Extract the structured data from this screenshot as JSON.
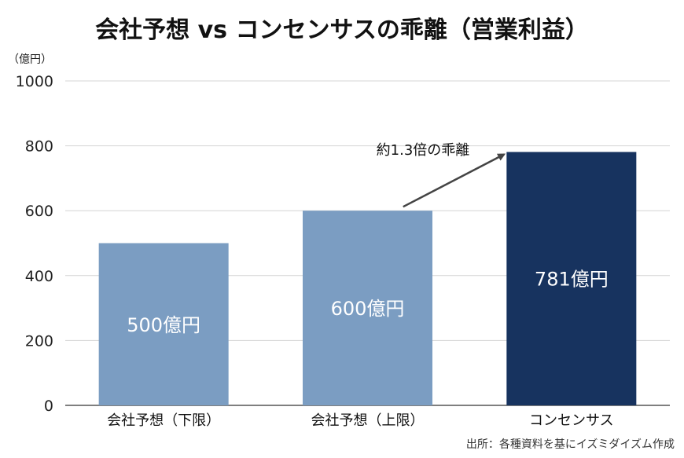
{
  "chart_data": {
    "type": "bar",
    "title": "会社予想 vs コンセンサスの乖離（営業利益）",
    "unit_label": "（億円）",
    "categories": [
      "会社予想（下限）",
      "会社予想（上限）",
      "コンセンサス"
    ],
    "values": [
      500,
      600,
      781
    ],
    "data_labels": [
      "500億円",
      "600億円",
      "781億円"
    ],
    "bar_colors": [
      "#7b9dc2",
      "#7b9dc2",
      "#17335f"
    ],
    "ylim": [
      0,
      1000
    ],
    "yticks": [
      0,
      200,
      400,
      600,
      800,
      1000
    ],
    "grid": true,
    "annotation": {
      "text": "約1.3倍の乖離",
      "from_category": "会社予想（上限）",
      "to_category": "コンセンサス"
    },
    "source": "出所：各種資料を基にイズミダイズム作成"
  }
}
